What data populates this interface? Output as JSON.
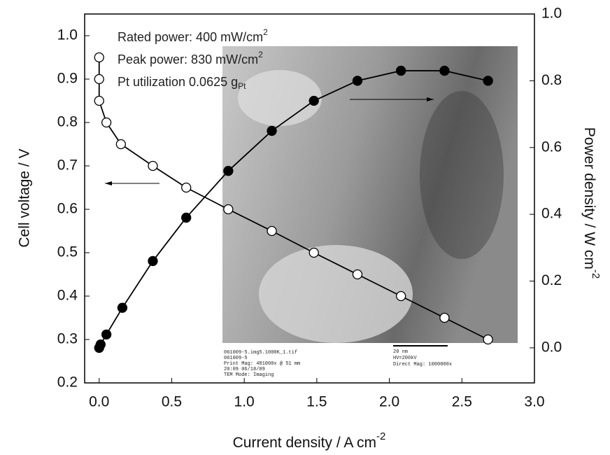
{
  "chart_data": {
    "type": "line",
    "x_label": {
      "text": "Current density / A cm",
      "sup": "-2"
    },
    "y_label": "Cell voltage / V",
    "y2_label": {
      "text": "Power density / W cm",
      "sup": "-2"
    },
    "annotations": [
      {
        "text": "Rated power: 400 mW/cm",
        "sup": "2"
      },
      {
        "text": "Peak power: 830 mW/cm",
        "sup": "2"
      },
      {
        "text": "Pt utilization 0.0625 g",
        "sub": "Pt"
      }
    ],
    "inset_text": [
      "061009-5.img5.1000K_1.tif",
      "061009-5",
      "Print Mag: 481000x @ 51 mm",
      "20:09 06/18/09",
      "TEM Mode: Imaging",
      "20 nm",
      "HV=200kV",
      "Direct Mag: 1000000x"
    ],
    "xlim": [
      -0.1,
      3.0
    ],
    "xticks": [
      {
        "value": 0,
        "label": "0.0"
      },
      0.5,
      {
        "value": 1,
        "label": "1.0"
      },
      1.5,
      {
        "value": 2,
        "label": "2.0"
      },
      2.5,
      {
        "value": 3,
        "label": "3.0"
      }
    ],
    "ylim": [
      0.2,
      1.05
    ],
    "yticks": [
      0.2,
      0.3,
      0.4,
      0.5,
      0.6,
      0.7,
      0.8,
      0.9,
      {
        "value": 1,
        "label": "1.0"
      }
    ],
    "y2lim": [
      -0.105,
      1.0
    ],
    "y2ticks": [
      {
        "value": 0,
        "label": "0.0"
      },
      0.2,
      0.4,
      0.6,
      0.8,
      {
        "value": 1,
        "label": "1.0"
      }
    ],
    "series": [
      {
        "name": "Cell voltage",
        "marker": "open",
        "color": "#000000",
        "x": [
          0,
          0,
          0,
          0.05,
          0.15,
          0.37,
          0.6,
          0.89,
          1.19,
          1.48,
          1.78,
          2.08,
          2.38,
          2.68
        ],
        "values": [
          0.95,
          0.9,
          0.85,
          0.8,
          0.75,
          0.7,
          0.65,
          0.6,
          0.55,
          0.5,
          0.45,
          0.4,
          0.35,
          0.3
        ]
      },
      {
        "name": "Power density",
        "marker": "filled",
        "color": "#000000",
        "axis": "y2",
        "x": [
          0,
          0.01,
          0.05,
          0.16,
          0.37,
          0.6,
          0.89,
          1.19,
          1.48,
          1.78,
          2.08,
          2.38,
          2.68
        ],
        "values": [
          0,
          0.01,
          0.04,
          0.12,
          0.26,
          0.39,
          0.53,
          0.65,
          0.74,
          0.8,
          0.83,
          0.83,
          0.8
        ]
      }
    ]
  }
}
